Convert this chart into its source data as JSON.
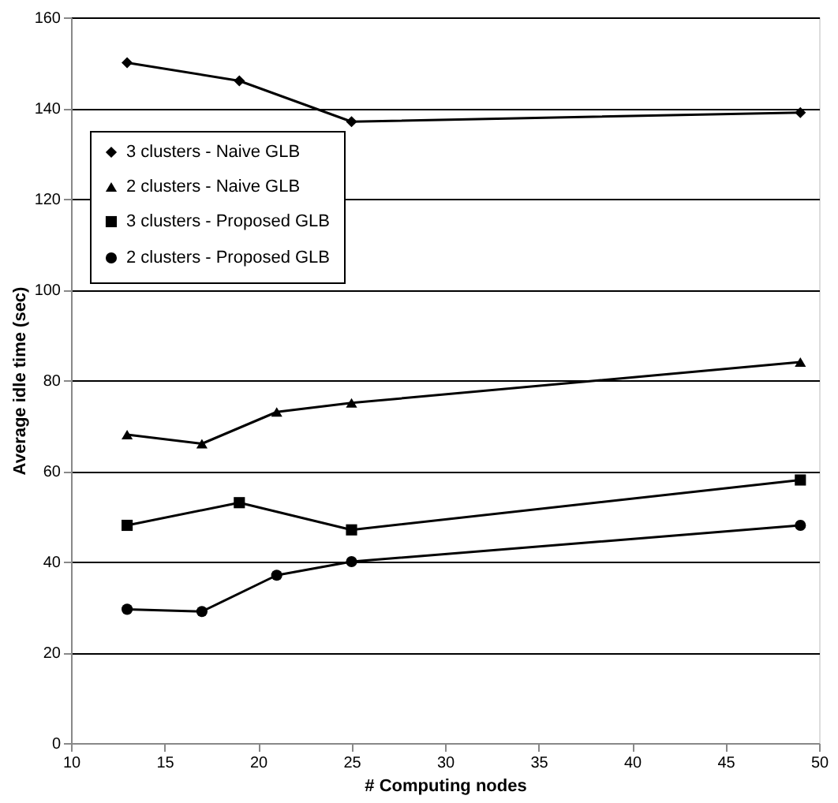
{
  "chart_data": {
    "type": "line",
    "xlabel": "# Computing nodes",
    "ylabel": "Average idle time (sec)",
    "xlim": [
      10,
      50
    ],
    "xticks": [
      10,
      15,
      20,
      25,
      30,
      35,
      40,
      45,
      50
    ],
    "ylim": [
      0,
      160
    ],
    "yticks": [
      0,
      20,
      40,
      60,
      80,
      100,
      120,
      140,
      160
    ],
    "grid": "y",
    "legend": "top left",
    "line_style": "solid",
    "series": [
      {
        "name": "3 clusters - Naive GLB",
        "color": "#000000",
        "marker": "diamond",
        "x": [
          13,
          19,
          25,
          49
        ],
        "values": [
          150,
          146,
          137,
          139
        ]
      },
      {
        "name": "2 clusters - Naive GLB",
        "color": "#000000",
        "marker": "triangle",
        "x": [
          13,
          17,
          21,
          25,
          49
        ],
        "values": [
          68,
          66,
          73,
          75,
          84
        ]
      },
      {
        "name": "3 clusters - Proposed GLB",
        "color": "#000000",
        "marker": "square",
        "x": [
          13,
          19,
          25,
          49
        ],
        "values": [
          48,
          53,
          47,
          58
        ]
      },
      {
        "name": "2 clusters - Proposed GLB",
        "color": "#000000",
        "marker": "circle",
        "x": [
          13,
          17,
          21,
          25,
          49
        ],
        "values": [
          29.5,
          29,
          37,
          40,
          48
        ]
      }
    ]
  }
}
